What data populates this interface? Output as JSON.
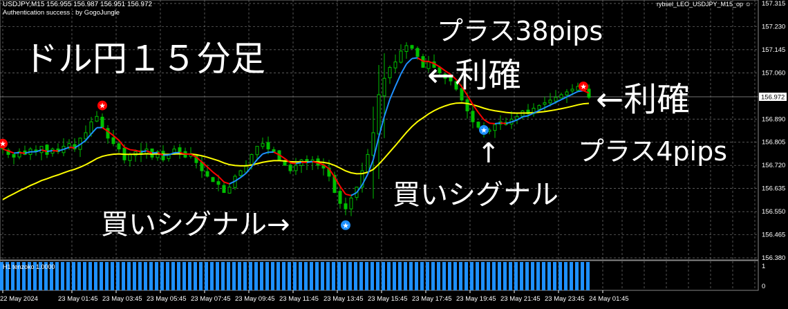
{
  "header": {
    "symbol_line": "USDJPY,M15  156.955 156.987 156.951 156.972",
    "auth_line": "Authentication success : by GogoJungle",
    "ea_label": "rybsel_LEO_USDJPY_M15_op"
  },
  "annotations": {
    "title": "ドル円１５分足",
    "profit1": "プラス38pips",
    "take_profit1": "←利確",
    "take_profit2": "←利確",
    "profit2": "プラス4pips",
    "arrow_up": "↑",
    "buy_signal1": "買いシグナル",
    "buy_signal2": "買いシグナル→"
  },
  "subwindow": {
    "label": "H1  tenzoko 1.0000",
    "scale_top": "1",
    "scale_bottom": "0",
    "value": 1
  },
  "colors": {
    "background": "#000000",
    "bull_candle": "#00c000",
    "bear_candle": "#00c000",
    "ma_up": "#1e90ff",
    "ma_down": "#ff0000",
    "ma_slow": "#ffff00",
    "histogram": "#1e90ff",
    "buy_star": "#1e90ff",
    "sell_star": "#ff0000"
  },
  "chart_data": {
    "type": "candlestick",
    "symbol": "USDJPY",
    "timeframe": "M15",
    "ylim": [
      156.38,
      157.315
    ],
    "y_ticks": [
      "157.315",
      "157.230",
      "157.145",
      "157.060",
      "156.972",
      "156.890",
      "156.805",
      "156.720",
      "156.635",
      "156.550",
      "156.465",
      "156.380"
    ],
    "current_price": "156.972",
    "x_ticks": [
      "22 May 2024",
      "23 May 01:45",
      "23 May 03:45",
      "23 May 05:45",
      "23 May 07:45",
      "23 May 09:45",
      "23 May 11:45",
      "23 May 13:45",
      "23 May 15:45",
      "23 May 17:45",
      "23 May 19:45",
      "23 May 21:45",
      "23 May 23:45",
      "24 May 01:45"
    ],
    "closes": [
      156.78,
      156.76,
      156.75,
      156.77,
      156.76,
      156.78,
      156.77,
      156.79,
      156.76,
      156.78,
      156.77,
      156.79,
      156.8,
      156.78,
      156.82,
      156.84,
      156.88,
      156.9,
      156.86,
      156.82,
      156.8,
      156.78,
      156.74,
      156.76,
      156.77,
      156.76,
      156.78,
      156.75,
      156.77,
      156.74,
      156.76,
      156.78,
      156.77,
      156.75,
      156.76,
      156.73,
      156.7,
      156.68,
      156.66,
      156.65,
      156.62,
      156.64,
      156.68,
      156.7,
      156.72,
      156.76,
      156.79,
      156.8,
      156.78,
      156.77,
      156.74,
      156.72,
      156.7,
      156.72,
      156.74,
      156.73,
      156.74,
      156.72,
      156.71,
      156.68,
      156.62,
      156.58,
      156.56,
      156.6,
      156.64,
      156.7,
      156.76,
      156.84,
      156.98,
      157.04,
      157.08,
      157.1,
      157.14,
      157.16,
      157.15,
      157.12,
      157.08,
      157.1,
      157.08,
      157.06,
      157.04,
      157.03,
      157.0,
      156.96,
      156.92,
      156.88,
      156.86,
      156.84,
      156.85,
      156.87,
      156.88,
      156.87,
      156.89,
      156.9,
      156.92,
      156.91,
      156.93,
      156.94,
      156.95,
      156.96,
      156.97,
      156.98,
      156.99,
      157.0,
      157.01,
      157.0,
      156.97
    ],
    "signals": [
      {
        "bar": 0,
        "type": "sell",
        "price": 156.8
      },
      {
        "bar": 18,
        "type": "sell",
        "price": 156.94
      },
      {
        "bar": 62,
        "type": "buy",
        "price": 156.5
      },
      {
        "bar": 87,
        "type": "buy",
        "price": 156.85
      },
      {
        "bar": 105,
        "type": "sell",
        "price": 157.01
      }
    ]
  }
}
